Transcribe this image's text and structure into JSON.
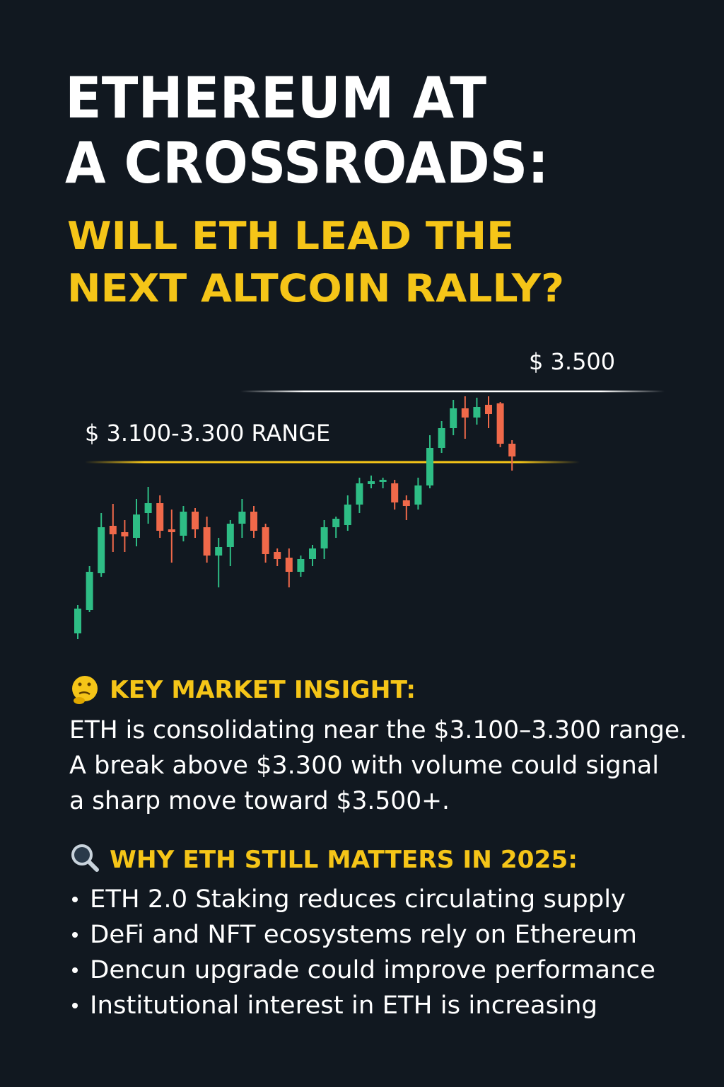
{
  "header": {
    "title_lines": [
      "ETHEREUM AT",
      "A CROSSROADS:"
    ],
    "subtitle_lines": [
      "WILL ETH LEAD THE",
      "NEXT ALTCOIN RALLY?"
    ]
  },
  "chart_data": {
    "type": "candlestick",
    "up_color": "#2ebd85",
    "down_color": "#f0694a",
    "ylim": [
      2800,
      3600
    ],
    "levels": [
      {
        "value": 3500,
        "label": "$ 3.500",
        "color": "#ffffff"
      },
      {
        "value": 3300,
        "label": "$ 3.100-3.300 RANGE",
        "color": "#f5c518"
      }
    ],
    "candles": [
      {
        "open": 2816,
        "high": 2896,
        "low": 2800,
        "close": 2886
      },
      {
        "open": 2882,
        "high": 3006,
        "low": 2876,
        "close": 2990
      },
      {
        "open": 2986,
        "high": 3156,
        "low": 2976,
        "close": 3116
      },
      {
        "open": 3120,
        "high": 3182,
        "low": 3046,
        "close": 3096
      },
      {
        "open": 3102,
        "high": 3136,
        "low": 3046,
        "close": 3090
      },
      {
        "open": 3086,
        "high": 3196,
        "low": 3062,
        "close": 3152
      },
      {
        "open": 3156,
        "high": 3230,
        "low": 3126,
        "close": 3184
      },
      {
        "open": 3184,
        "high": 3206,
        "low": 3086,
        "close": 3106
      },
      {
        "open": 3110,
        "high": 3166,
        "low": 3016,
        "close": 3102
      },
      {
        "open": 3092,
        "high": 3176,
        "low": 3076,
        "close": 3160
      },
      {
        "open": 3160,
        "high": 3170,
        "low": 3086,
        "close": 3110
      },
      {
        "open": 3116,
        "high": 3146,
        "low": 3016,
        "close": 3036
      },
      {
        "open": 3036,
        "high": 3086,
        "low": 2946,
        "close": 3060
      },
      {
        "open": 3060,
        "high": 3136,
        "low": 3006,
        "close": 3126
      },
      {
        "open": 3126,
        "high": 3196,
        "low": 3086,
        "close": 3160
      },
      {
        "open": 3160,
        "high": 3176,
        "low": 3086,
        "close": 3106
      },
      {
        "open": 3116,
        "high": 3126,
        "low": 3016,
        "close": 3040
      },
      {
        "open": 3046,
        "high": 3056,
        "low": 3006,
        "close": 3026
      },
      {
        "open": 3030,
        "high": 3056,
        "low": 2946,
        "close": 2990
      },
      {
        "open": 2990,
        "high": 3036,
        "low": 2976,
        "close": 3026
      },
      {
        "open": 3026,
        "high": 3066,
        "low": 3006,
        "close": 3056
      },
      {
        "open": 3056,
        "high": 3136,
        "low": 3026,
        "close": 3116
      },
      {
        "open": 3116,
        "high": 3146,
        "low": 3086,
        "close": 3140
      },
      {
        "open": 3122,
        "high": 3206,
        "low": 3106,
        "close": 3180
      },
      {
        "open": 3180,
        "high": 3256,
        "low": 3156,
        "close": 3240
      },
      {
        "open": 3238,
        "high": 3262,
        "low": 3226,
        "close": 3246
      },
      {
        "open": 3244,
        "high": 3256,
        "low": 3226,
        "close": 3250
      },
      {
        "open": 3240,
        "high": 3250,
        "low": 3166,
        "close": 3186
      },
      {
        "open": 3192,
        "high": 3206,
        "low": 3136,
        "close": 3176
      },
      {
        "open": 3180,
        "high": 3256,
        "low": 3166,
        "close": 3234
      },
      {
        "open": 3234,
        "high": 3376,
        "low": 3226,
        "close": 3340
      },
      {
        "open": 3340,
        "high": 3416,
        "low": 3326,
        "close": 3396
      },
      {
        "open": 3396,
        "high": 3476,
        "low": 3376,
        "close": 3452
      },
      {
        "open": 3452,
        "high": 3486,
        "low": 3366,
        "close": 3426
      },
      {
        "open": 3426,
        "high": 3482,
        "low": 3406,
        "close": 3456
      },
      {
        "open": 3462,
        "high": 3486,
        "low": 3396,
        "close": 3436
      },
      {
        "open": 3466,
        "high": 3470,
        "low": 3342,
        "close": 3352
      },
      {
        "open": 3352,
        "high": 3362,
        "low": 3276,
        "close": 3316
      }
    ]
  },
  "insight": {
    "heading": "KEY MARKET INSIGHT:",
    "lines": [
      "ETH is consolidating near the $3.100–3.300 range.",
      "A break above $3.300 with volume could signal",
      "a sharp move toward $3.500+."
    ]
  },
  "reasons": {
    "heading": "WHY ETH STILL MATTERS IN 2025:",
    "items": [
      "ETH 2.0 Staking reduces circulating supply",
      "DeFi and NFT ecosystems rely on Ethereum",
      "Dencun upgrade could improve performance",
      "Institutional interest in ETH is increasing"
    ]
  }
}
